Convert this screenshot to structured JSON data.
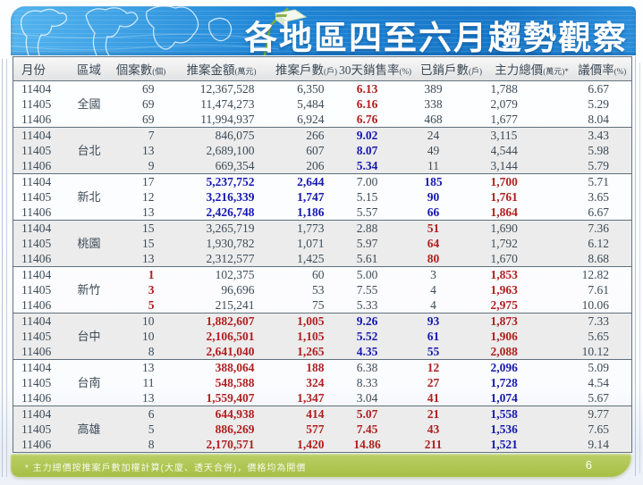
{
  "slide": {
    "title": "各地區四至六月趨勢觀察",
    "page_number": "6",
    "footnote": "* 主力總價按推案戶數加權計算(大廈、透天合併)，價格均為開價"
  },
  "colors": {
    "banner_blue": "#1f86d6",
    "banner_blue_light": "#55b5ef",
    "footer_green": "#a7bf44",
    "text_dark": "#3d4b57",
    "accent_red": "#b01f1f",
    "accent_blue": "#1518b0",
    "row_shade": "#ececec",
    "border_dark": "#64747f"
  },
  "table": {
    "columns": [
      {
        "label": "月份",
        "unit": ""
      },
      {
        "label": "區域",
        "unit": ""
      },
      {
        "label": "個案數",
        "unit": "(個)"
      },
      {
        "label": "推案金額",
        "unit": "(萬元)"
      },
      {
        "label": "推案戶數",
        "unit": "(戶)"
      },
      {
        "label": "30天銷售率",
        "unit": "(%)"
      },
      {
        "label": "已銷戶數",
        "unit": "(戶)"
      },
      {
        "label": "主力總價",
        "unit": "(萬元)*"
      },
      {
        "label": "議價率",
        "unit": "(%)"
      }
    ],
    "groups": [
      {
        "region": "全國",
        "shaded": false,
        "rows": [
          {
            "month": "11404",
            "cells": [
              [
                "69",
                ""
              ],
              [
                "12,367,528",
                ""
              ],
              [
                "6,350",
                ""
              ],
              [
                "6.13",
                "r"
              ],
              [
                "389",
                ""
              ],
              [
                "1,788",
                ""
              ],
              [
                "6.67",
                ""
              ]
            ]
          },
          {
            "month": "11405",
            "cells": [
              [
                "69",
                ""
              ],
              [
                "11,474,273",
                ""
              ],
              [
                "5,484",
                ""
              ],
              [
                "6.16",
                "r"
              ],
              [
                "338",
                ""
              ],
              [
                "2,079",
                ""
              ],
              [
                "5.29",
                ""
              ]
            ]
          },
          {
            "month": "11406",
            "cells": [
              [
                "69",
                ""
              ],
              [
                "11,994,937",
                ""
              ],
              [
                "6,924",
                ""
              ],
              [
                "6.76",
                "r"
              ],
              [
                "468",
                ""
              ],
              [
                "1,677",
                ""
              ],
              [
                "8.04",
                ""
              ]
            ]
          }
        ]
      },
      {
        "region": "台北",
        "shaded": true,
        "rows": [
          {
            "month": "11404",
            "cells": [
              [
                "7",
                ""
              ],
              [
                "846,075",
                ""
              ],
              [
                "266",
                ""
              ],
              [
                "9.02",
                "b"
              ],
              [
                "24",
                ""
              ],
              [
                "3,115",
                ""
              ],
              [
                "3.43",
                ""
              ]
            ]
          },
          {
            "month": "11405",
            "cells": [
              [
                "13",
                ""
              ],
              [
                "2,689,100",
                ""
              ],
              [
                "607",
                ""
              ],
              [
                "8.07",
                "b"
              ],
              [
                "49",
                ""
              ],
              [
                "4,544",
                ""
              ],
              [
                "5.98",
                ""
              ]
            ]
          },
          {
            "month": "11406",
            "cells": [
              [
                "9",
                ""
              ],
              [
                "669,354",
                ""
              ],
              [
                "206",
                ""
              ],
              [
                "5.34",
                "b"
              ],
              [
                "11",
                ""
              ],
              [
                "3,144",
                ""
              ],
              [
                "5.79",
                ""
              ]
            ]
          }
        ]
      },
      {
        "region": "新北",
        "shaded": false,
        "rows": [
          {
            "month": "11404",
            "cells": [
              [
                "17",
                ""
              ],
              [
                "5,237,752",
                "b"
              ],
              [
                "2,644",
                "b"
              ],
              [
                "7.00",
                ""
              ],
              [
                "185",
                "b"
              ],
              [
                "1,700",
                "r"
              ],
              [
                "5.71",
                ""
              ]
            ]
          },
          {
            "month": "11405",
            "cells": [
              [
                "12",
                ""
              ],
              [
                "3,216,339",
                "b"
              ],
              [
                "1,747",
                "b"
              ],
              [
                "5.15",
                ""
              ],
              [
                "90",
                "b"
              ],
              [
                "1,761",
                "r"
              ],
              [
                "3.65",
                ""
              ]
            ]
          },
          {
            "month": "11406",
            "cells": [
              [
                "13",
                ""
              ],
              [
                "2,426,748",
                "b"
              ],
              [
                "1,186",
                "b"
              ],
              [
                "5.57",
                ""
              ],
              [
                "66",
                "b"
              ],
              [
                "1,864",
                "r"
              ],
              [
                "6.67",
                ""
              ]
            ]
          }
        ]
      },
      {
        "region": "桃園",
        "shaded": true,
        "rows": [
          {
            "month": "11404",
            "cells": [
              [
                "15",
                ""
              ],
              [
                "3,265,719",
                ""
              ],
              [
                "1,773",
                ""
              ],
              [
                "2.88",
                ""
              ],
              [
                "51",
                "r"
              ],
              [
                "1,690",
                ""
              ],
              [
                "7.36",
                ""
              ]
            ]
          },
          {
            "month": "11405",
            "cells": [
              [
                "15",
                ""
              ],
              [
                "1,930,782",
                ""
              ],
              [
                "1,071",
                ""
              ],
              [
                "5.97",
                ""
              ],
              [
                "64",
                "r"
              ],
              [
                "1,792",
                ""
              ],
              [
                "6.12",
                ""
              ]
            ]
          },
          {
            "month": "11406",
            "cells": [
              [
                "13",
                ""
              ],
              [
                "2,312,577",
                ""
              ],
              [
                "1,425",
                ""
              ],
              [
                "5.61",
                ""
              ],
              [
                "80",
                "r"
              ],
              [
                "1,670",
                ""
              ],
              [
                "8.68",
                ""
              ]
            ]
          }
        ]
      },
      {
        "region": "新竹",
        "shaded": false,
        "rows": [
          {
            "month": "11404",
            "cells": [
              [
                "1",
                "r"
              ],
              [
                "102,375",
                ""
              ],
              [
                "60",
                ""
              ],
              [
                "5.00",
                ""
              ],
              [
                "3",
                ""
              ],
              [
                "1,853",
                "r"
              ],
              [
                "12.82",
                ""
              ]
            ]
          },
          {
            "month": "11405",
            "cells": [
              [
                "3",
                "r"
              ],
              [
                "96,696",
                ""
              ],
              [
                "53",
                ""
              ],
              [
                "7.55",
                ""
              ],
              [
                "4",
                ""
              ],
              [
                "1,963",
                "r"
              ],
              [
                "7.61",
                ""
              ]
            ]
          },
          {
            "month": "11406",
            "cells": [
              [
                "5",
                "r"
              ],
              [
                "215,241",
                ""
              ],
              [
                "75",
                ""
              ],
              [
                "5.33",
                ""
              ],
              [
                "4",
                ""
              ],
              [
                "2,975",
                "r"
              ],
              [
                "10.06",
                ""
              ]
            ]
          }
        ]
      },
      {
        "region": "台中",
        "shaded": true,
        "rows": [
          {
            "month": "11404",
            "cells": [
              [
                "10",
                ""
              ],
              [
                "1,882,607",
                "r"
              ],
              [
                "1,005",
                "r"
              ],
              [
                "9.26",
                "b"
              ],
              [
                "93",
                "b"
              ],
              [
                "1,873",
                "r"
              ],
              [
                "7.33",
                ""
              ]
            ]
          },
          {
            "month": "11405",
            "cells": [
              [
                "10",
                ""
              ],
              [
                "2,106,501",
                "r"
              ],
              [
                "1,105",
                "r"
              ],
              [
                "5.52",
                "b"
              ],
              [
                "61",
                "b"
              ],
              [
                "1,906",
                "r"
              ],
              [
                "5.65",
                ""
              ]
            ]
          },
          {
            "month": "11406",
            "cells": [
              [
                "8",
                ""
              ],
              [
                "2,641,040",
                "r"
              ],
              [
                "1,265",
                "r"
              ],
              [
                "4.35",
                "b"
              ],
              [
                "55",
                "b"
              ],
              [
                "2,088",
                "r"
              ],
              [
                "10.12",
                ""
              ]
            ]
          }
        ]
      },
      {
        "region": "台南",
        "shaded": false,
        "rows": [
          {
            "month": "11404",
            "cells": [
              [
                "13",
                ""
              ],
              [
                "388,064",
                "r"
              ],
              [
                "188",
                "r"
              ],
              [
                "6.38",
                ""
              ],
              [
                "12",
                "r"
              ],
              [
                "2,096",
                "b"
              ],
              [
                "5.09",
                ""
              ]
            ]
          },
          {
            "month": "11405",
            "cells": [
              [
                "11",
                ""
              ],
              [
                "548,588",
                "r"
              ],
              [
                "324",
                "r"
              ],
              [
                "8.33",
                ""
              ],
              [
                "27",
                "r"
              ],
              [
                "1,728",
                "b"
              ],
              [
                "4.54",
                ""
              ]
            ]
          },
          {
            "month": "11406",
            "cells": [
              [
                "13",
                ""
              ],
              [
                "1,559,407",
                "r"
              ],
              [
                "1,347",
                "r"
              ],
              [
                "3.04",
                ""
              ],
              [
                "41",
                "r"
              ],
              [
                "1,074",
                "b"
              ],
              [
                "5.67",
                ""
              ]
            ]
          }
        ]
      },
      {
        "region": "高雄",
        "shaded": true,
        "rows": [
          {
            "month": "11404",
            "cells": [
              [
                "6",
                ""
              ],
              [
                "644,938",
                "r"
              ],
              [
                "414",
                "r"
              ],
              [
                "5.07",
                "r"
              ],
              [
                "21",
                "r"
              ],
              [
                "1,558",
                "b"
              ],
              [
                "9.77",
                ""
              ]
            ]
          },
          {
            "month": "11405",
            "cells": [
              [
                "5",
                ""
              ],
              [
                "886,269",
                "r"
              ],
              [
                "577",
                "r"
              ],
              [
                "7.45",
                "r"
              ],
              [
                "43",
                "r"
              ],
              [
                "1,536",
                "b"
              ],
              [
                "7.65",
                ""
              ]
            ]
          },
          {
            "month": "11406",
            "cells": [
              [
                "8",
                ""
              ],
              [
                "2,170,571",
                "r"
              ],
              [
                "1,420",
                "r"
              ],
              [
                "14.86",
                "r"
              ],
              [
                "211",
                "r"
              ],
              [
                "1,521",
                "b"
              ],
              [
                "9.14",
                ""
              ]
            ]
          }
        ]
      }
    ]
  }
}
